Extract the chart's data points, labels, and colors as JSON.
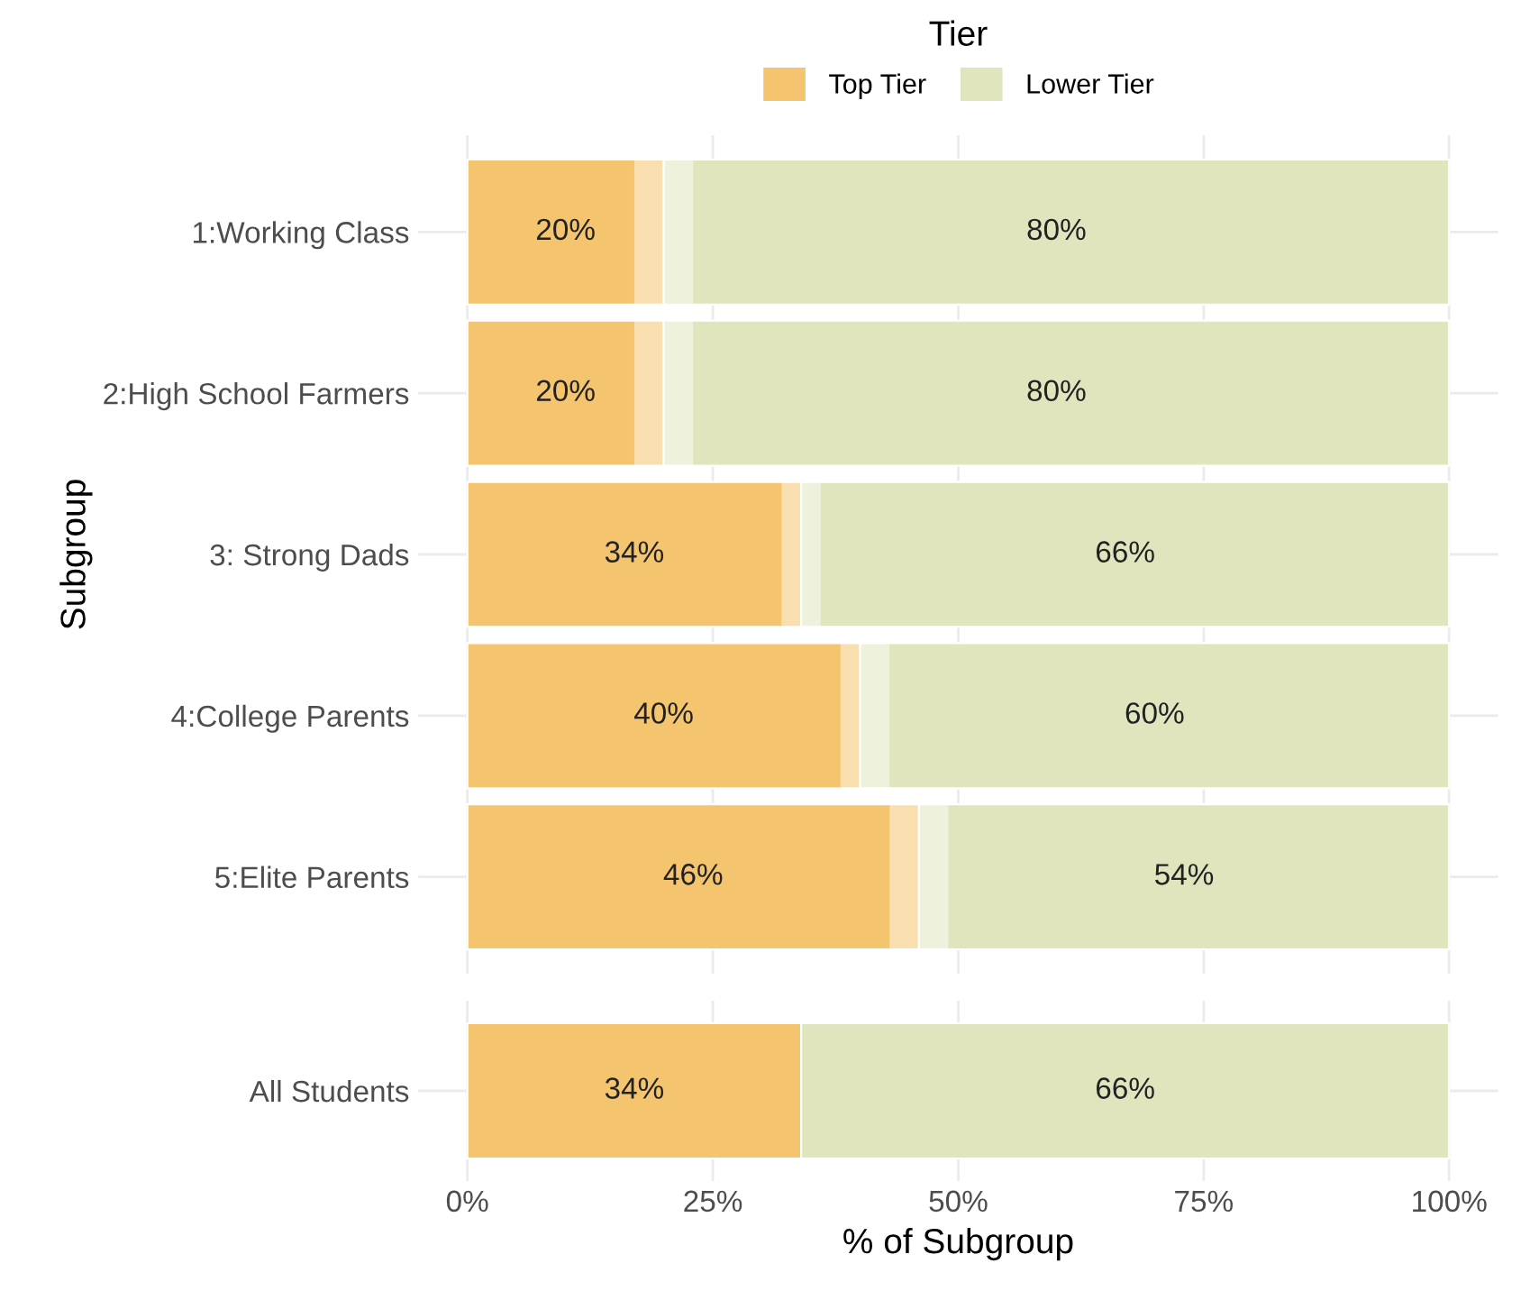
{
  "chart_data": [
    {
      "type": "bar",
      "orientation": "horizontal",
      "stacked": true,
      "ylabel": "Subgroup",
      "legend_title": "Tier",
      "legend": "top",
      "categories": [
        "1:Working Class",
        "2:High School Farmers",
        "3: Strong Dads",
        "4:College Parents",
        "5:Elite Parents"
      ],
      "series": [
        {
          "name": "Top Tier",
          "color": "#f5c46f",
          "values": [
            20,
            20,
            34,
            40,
            46
          ],
          "value_labels": [
            "20%",
            "20%",
            "34%",
            "40%",
            "46%"
          ],
          "errors": [
            [
              17,
              23
            ],
            [
              17,
              23
            ],
            [
              32,
              36
            ],
            [
              38,
              43
            ],
            [
              43,
              49
            ]
          ]
        },
        {
          "name": "Lower Tier",
          "color": "#e0e5bd",
          "values": [
            80,
            80,
            66,
            60,
            54
          ],
          "value_labels": [
            "80%",
            "80%",
            "66%",
            "60%",
            "54%"
          ]
        }
      ],
      "xlim": [
        -5,
        105
      ],
      "xticks": [
        0,
        25,
        50,
        75,
        100
      ],
      "tick_labels": "y",
      "grid": true
    },
    {
      "type": "bar",
      "orientation": "horizontal",
      "stacked": true,
      "xlabel": "% of Subgroup",
      "categories": [
        "All Students"
      ],
      "series": [
        {
          "color": "#f5c46f",
          "values": [
            34
          ],
          "value_labels": [
            "34%"
          ]
        },
        {
          "color": "#e0e5bd",
          "values": [
            66
          ],
          "value_labels": [
            "66%"
          ]
        }
      ],
      "xlim": [
        -5,
        105
      ],
      "xticks": [
        {
          "value": 0,
          "label": "0%"
        },
        {
          "value": 25,
          "label": "25%"
        },
        {
          "value": 50,
          "label": "50%"
        },
        {
          "value": 75,
          "label": "75%"
        },
        {
          "value": 100,
          "label": "100%"
        }
      ],
      "grid": true
    }
  ]
}
